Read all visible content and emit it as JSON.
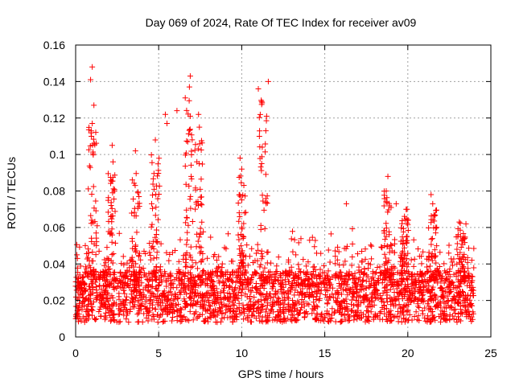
{
  "chart_data": {
    "type": "scatter",
    "title": "Day 069 of 2024, Rate Of TEC Index for receiver av09",
    "xlabel": "GPS time / hours",
    "ylabel": "ROTI / TECUs",
    "xlim": [
      0,
      25
    ],
    "ylim": [
      0,
      0.16
    ],
    "x_ticks": [
      "0",
      "5",
      "10",
      "15",
      "20",
      "25"
    ],
    "y_ticks": [
      "0",
      "0.02",
      "0.04",
      "0.06",
      "0.08",
      "0.1",
      "0.12",
      "0.14",
      "0.16"
    ],
    "grid": true,
    "marker": "+",
    "color": "#ff0000",
    "data_x_range_hours": [
      0,
      24
    ],
    "series": [
      {
        "name": "ROTI",
        "notable_points": [
          {
            "x": 1.0,
            "y": 0.148
          },
          {
            "x": 0.9,
            "y": 0.141
          },
          {
            "x": 1.1,
            "y": 0.127
          },
          {
            "x": 1.0,
            "y": 0.117
          },
          {
            "x": 0.95,
            "y": 0.11
          },
          {
            "x": 2.2,
            "y": 0.105
          },
          {
            "x": 2.25,
            "y": 0.096
          },
          {
            "x": 3.6,
            "y": 0.102
          },
          {
            "x": 4.8,
            "y": 0.108
          },
          {
            "x": 5.4,
            "y": 0.122
          },
          {
            "x": 5.5,
            "y": 0.117
          },
          {
            "x": 6.1,
            "y": 0.124
          },
          {
            "x": 6.6,
            "y": 0.131
          },
          {
            "x": 6.9,
            "y": 0.143
          },
          {
            "x": 6.85,
            "y": 0.137
          },
          {
            "x": 6.9,
            "y": 0.121
          },
          {
            "x": 6.75,
            "y": 0.107
          },
          {
            "x": 7.4,
            "y": 0.122
          },
          {
            "x": 7.45,
            "y": 0.115
          },
          {
            "x": 7.3,
            "y": 0.096
          },
          {
            "x": 9.9,
            "y": 0.098
          },
          {
            "x": 10.0,
            "y": 0.092
          },
          {
            "x": 11.0,
            "y": 0.136
          },
          {
            "x": 11.2,
            "y": 0.129
          },
          {
            "x": 11.6,
            "y": 0.14
          },
          {
            "x": 11.5,
            "y": 0.121
          },
          {
            "x": 11.45,
            "y": 0.113
          },
          {
            "x": 11.2,
            "y": 0.095
          },
          {
            "x": 16.3,
            "y": 0.073
          },
          {
            "x": 18.8,
            "y": 0.088
          },
          {
            "x": 18.7,
            "y": 0.08
          },
          {
            "x": 19.3,
            "y": 0.073
          },
          {
            "x": 19.9,
            "y": 0.07
          },
          {
            "x": 21.4,
            "y": 0.078
          },
          {
            "x": 21.5,
            "y": 0.073
          },
          {
            "x": 23.1,
            "y": 0.063
          },
          {
            "x": 23.5,
            "y": 0.062
          }
        ]
      }
    ]
  }
}
